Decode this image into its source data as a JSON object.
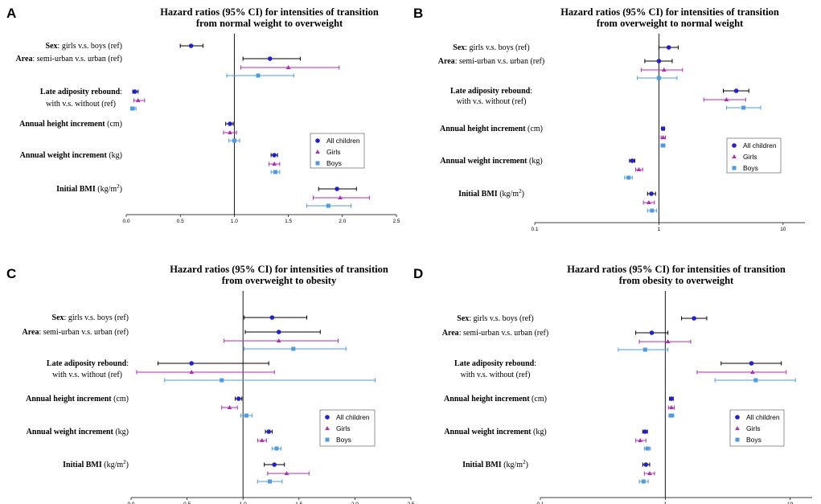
{
  "figure": {
    "legend": {
      "all": "All children",
      "girls": "Girls",
      "boys": "Boys"
    },
    "colors": {
      "all": "#1f1fd6",
      "girls": "#b02cb2",
      "boys": "#4d9be6",
      "whisker_all": "#000000"
    }
  },
  "chart_data": [
    {
      "panel": "A",
      "type": "forest",
      "title": [
        "Hazard ratios (95% CI) for intensities of transition",
        "from normal weight to overweight"
      ],
      "scale": "linear",
      "xlim": [
        0,
        2.5
      ],
      "ticks": [
        "0.0",
        "0.5",
        "1.0",
        "1.5",
        "2.0",
        "2.5"
      ],
      "tick_values": [
        0,
        0.5,
        1.0,
        1.5,
        2.0,
        2.5
      ],
      "reference": 1,
      "rows": [
        {
          "label_bold": "Sex",
          "label_rest": ": girls v.s. boys (ref)",
          "all": [
            0.6,
            0.5,
            0.71
          ],
          "girls": null,
          "boys": null
        },
        {
          "label_bold": "Area",
          "label_rest": ": semi-urban v.s. urban (ref)",
          "all": [
            1.33,
            1.08,
            1.61
          ],
          "girls": [
            1.5,
            1.06,
            1.97
          ],
          "boys": [
            1.22,
            0.93,
            1.55
          ]
        },
        {
          "label_bold": "Late adiposity rebound",
          "label_rest": ":",
          "label_line2": "with v.s. without (ref)",
          "all": [
            0.08,
            0.06,
            0.11
          ],
          "girls": [
            0.11,
            0.07,
            0.17
          ],
          "boys": [
            0.06,
            0.04,
            0.09
          ]
        },
        {
          "label_bold": "Annual height increment",
          "label_rest": " (cm)",
          "all": [
            0.96,
            0.92,
            0.99
          ],
          "girls": [
            0.96,
            0.9,
            1.02
          ],
          "boys": [
            1.0,
            0.95,
            1.05
          ]
        },
        {
          "label_bold": "Annual weight increment",
          "label_rest": " (kg)",
          "all": [
            1.37,
            1.34,
            1.4
          ],
          "girls": [
            1.37,
            1.32,
            1.42
          ],
          "boys": [
            1.38,
            1.34,
            1.42
          ]
        },
        {
          "label_bold": "Initial BMI",
          "label_rest": " (kg/m",
          "label_sup": "2",
          "label_end": ")",
          "all": [
            1.95,
            1.78,
            2.13
          ],
          "girls": [
            1.98,
            1.73,
            2.25
          ],
          "boys": [
            1.87,
            1.67,
            2.08
          ]
        }
      ]
    },
    {
      "panel": "B",
      "type": "forest",
      "title": [
        "Hazard ratios (95% CI) for intensities of transition",
        "from overweight to normal weight"
      ],
      "scale": "log",
      "xlim": [
        0.1,
        15
      ],
      "ticks": [
        "0.1",
        "1",
        "10"
      ],
      "tick_values": [
        0.1,
        1,
        10
      ],
      "reference": 1,
      "rows": [
        {
          "label_bold": "Sex",
          "label_rest": ": girls v.s. boys (ref)",
          "all": [
            1.2,
            1.0,
            1.43
          ],
          "girls": null,
          "boys": null
        },
        {
          "label_bold": "Area",
          "label_rest": ": semi-urban v.s. urban (ref)",
          "all": [
            1.0,
            0.77,
            1.28
          ],
          "girls": [
            1.1,
            0.72,
            1.55
          ],
          "boys": [
            1.0,
            0.67,
            1.4
          ]
        },
        {
          "label_bold": "Late adiposity rebound",
          "label_rest": ":",
          "label_line2": "with v.s. without (ref)",
          "all": [
            4.2,
            3.3,
            5.3
          ],
          "girls": [
            3.5,
            2.3,
            5.0
          ],
          "boys": [
            4.8,
            3.5,
            6.6
          ]
        },
        {
          "label_bold": "Annual height increment",
          "label_rest": " (cm)",
          "all": [
            1.08,
            1.05,
            1.11
          ],
          "girls": [
            1.08,
            1.04,
            1.13
          ],
          "boys": [
            1.08,
            1.04,
            1.12
          ]
        },
        {
          "label_bold": "Annual weight increment",
          "label_rest": " (kg)",
          "all": [
            0.61,
            0.58,
            0.64
          ],
          "girls": [
            0.69,
            0.65,
            0.74
          ],
          "boys": [
            0.57,
            0.53,
            0.61
          ]
        },
        {
          "label_bold": "Initial BMI",
          "label_rest": " (kg/m",
          "label_sup": "2",
          "label_end": ")",
          "all": [
            0.87,
            0.81,
            0.94
          ],
          "girls": [
            0.83,
            0.75,
            0.92
          ],
          "boys": [
            0.88,
            0.81,
            0.96
          ]
        }
      ]
    },
    {
      "panel": "C",
      "type": "forest",
      "title": [
        "Hazard ratios (95% CI) for intensities of transition",
        "from overweight to obesity"
      ],
      "scale": "linear",
      "xlim": [
        0,
        2.5
      ],
      "ticks": [
        "0.0",
        "0.5",
        "1.0",
        "1.5",
        "2.0",
        "2.5"
      ],
      "tick_values": [
        0,
        0.5,
        1.0,
        1.5,
        2.0,
        2.5
      ],
      "reference": 1,
      "rows": [
        {
          "label_bold": "Sex",
          "label_rest": ": girls v.s. boys (ref)",
          "all": [
            1.26,
            1.01,
            1.57
          ],
          "girls": null,
          "boys": null
        },
        {
          "label_bold": "Area",
          "label_rest": ": semi-urban v.s. urban (ref)",
          "all": [
            1.32,
            1.02,
            1.69
          ],
          "girls": [
            1.32,
            0.83,
            1.85
          ],
          "boys": [
            1.45,
            1.01,
            1.92
          ]
        },
        {
          "label_bold": "Late adiposity rebound",
          "label_rest": ":",
          "label_line2": "with v.s. without (ref)",
          "all": [
            0.54,
            0.24,
            1.23
          ],
          "girls": [
            0.54,
            0.05,
            1.28
          ],
          "boys": [
            0.81,
            0.3,
            2.18
          ]
        },
        {
          "label_bold": "Annual height increment",
          "label_rest": " (cm)",
          "all": [
            0.96,
            0.93,
            0.99
          ],
          "girls": [
            0.88,
            0.81,
            0.95
          ],
          "boys": [
            1.03,
            0.98,
            1.08
          ]
        },
        {
          "label_bold": "Annual weight increment",
          "label_rest": " (kg)",
          "all": [
            1.23,
            1.2,
            1.26
          ],
          "girls": [
            1.17,
            1.13,
            1.21
          ],
          "boys": [
            1.3,
            1.26,
            1.34
          ]
        },
        {
          "label_bold": "Initial BMI",
          "label_rest": " (kg/m",
          "label_sup": "2",
          "label_end": ")",
          "all": [
            1.28,
            1.19,
            1.37
          ],
          "girls": [
            1.39,
            1.22,
            1.59
          ],
          "boys": [
            1.24,
            1.13,
            1.35
          ]
        }
      ]
    },
    {
      "panel": "D",
      "type": "forest",
      "title": [
        "Hazard ratios (95% CI) for intensities of transition",
        "from obesity to overweight"
      ],
      "scale": "log",
      "xlim": [
        0.1,
        15
      ],
      "ticks": [
        "0.1",
        "1",
        "10"
      ],
      "tick_values": [
        0.1,
        1,
        10
      ],
      "reference": 1,
      "rows": [
        {
          "label_bold": "Sex",
          "label_rest": ": girls v.s. boys (ref)",
          "all": [
            1.7,
            1.35,
            2.15
          ],
          "girls": null,
          "boys": null
        },
        {
          "label_bold": "Area",
          "label_rest": ": semi-urban v.s. urban (ref)",
          "all": [
            0.78,
            0.58,
            1.05
          ],
          "girls": [
            1.05,
            0.62,
            1.6
          ],
          "boys": [
            0.69,
            0.42,
            1.05
          ]
        },
        {
          "label_bold": "Late adiposity rebound",
          "label_rest": ":",
          "label_line2": "with v.s. without (ref)",
          "all": [
            4.9,
            2.8,
            8.5
          ],
          "girls": [
            5.0,
            1.8,
            9.3
          ],
          "boys": [
            5.3,
            2.5,
            11.0
          ]
        },
        {
          "label_bold": "Annual height increment",
          "label_rest": " (cm)",
          "all": [
            1.12,
            1.08,
            1.16
          ],
          "girls": [
            1.12,
            1.06,
            1.18
          ],
          "boys": [
            1.12,
            1.07,
            1.17
          ]
        },
        {
          "label_bold": "Annual weight increment",
          "label_rest": " (kg)",
          "all": [
            0.69,
            0.66,
            0.72
          ],
          "girls": [
            0.63,
            0.58,
            0.7
          ],
          "boys": [
            0.72,
            0.68,
            0.76
          ]
        },
        {
          "label_bold": "Initial BMI",
          "label_rest": " (kg/m",
          "label_sup": "2",
          "label_end": ")",
          "all": [
            0.7,
            0.66,
            0.75
          ],
          "girls": [
            0.75,
            0.68,
            0.82
          ],
          "boys": [
            0.67,
            0.62,
            0.73
          ]
        }
      ]
    }
  ]
}
